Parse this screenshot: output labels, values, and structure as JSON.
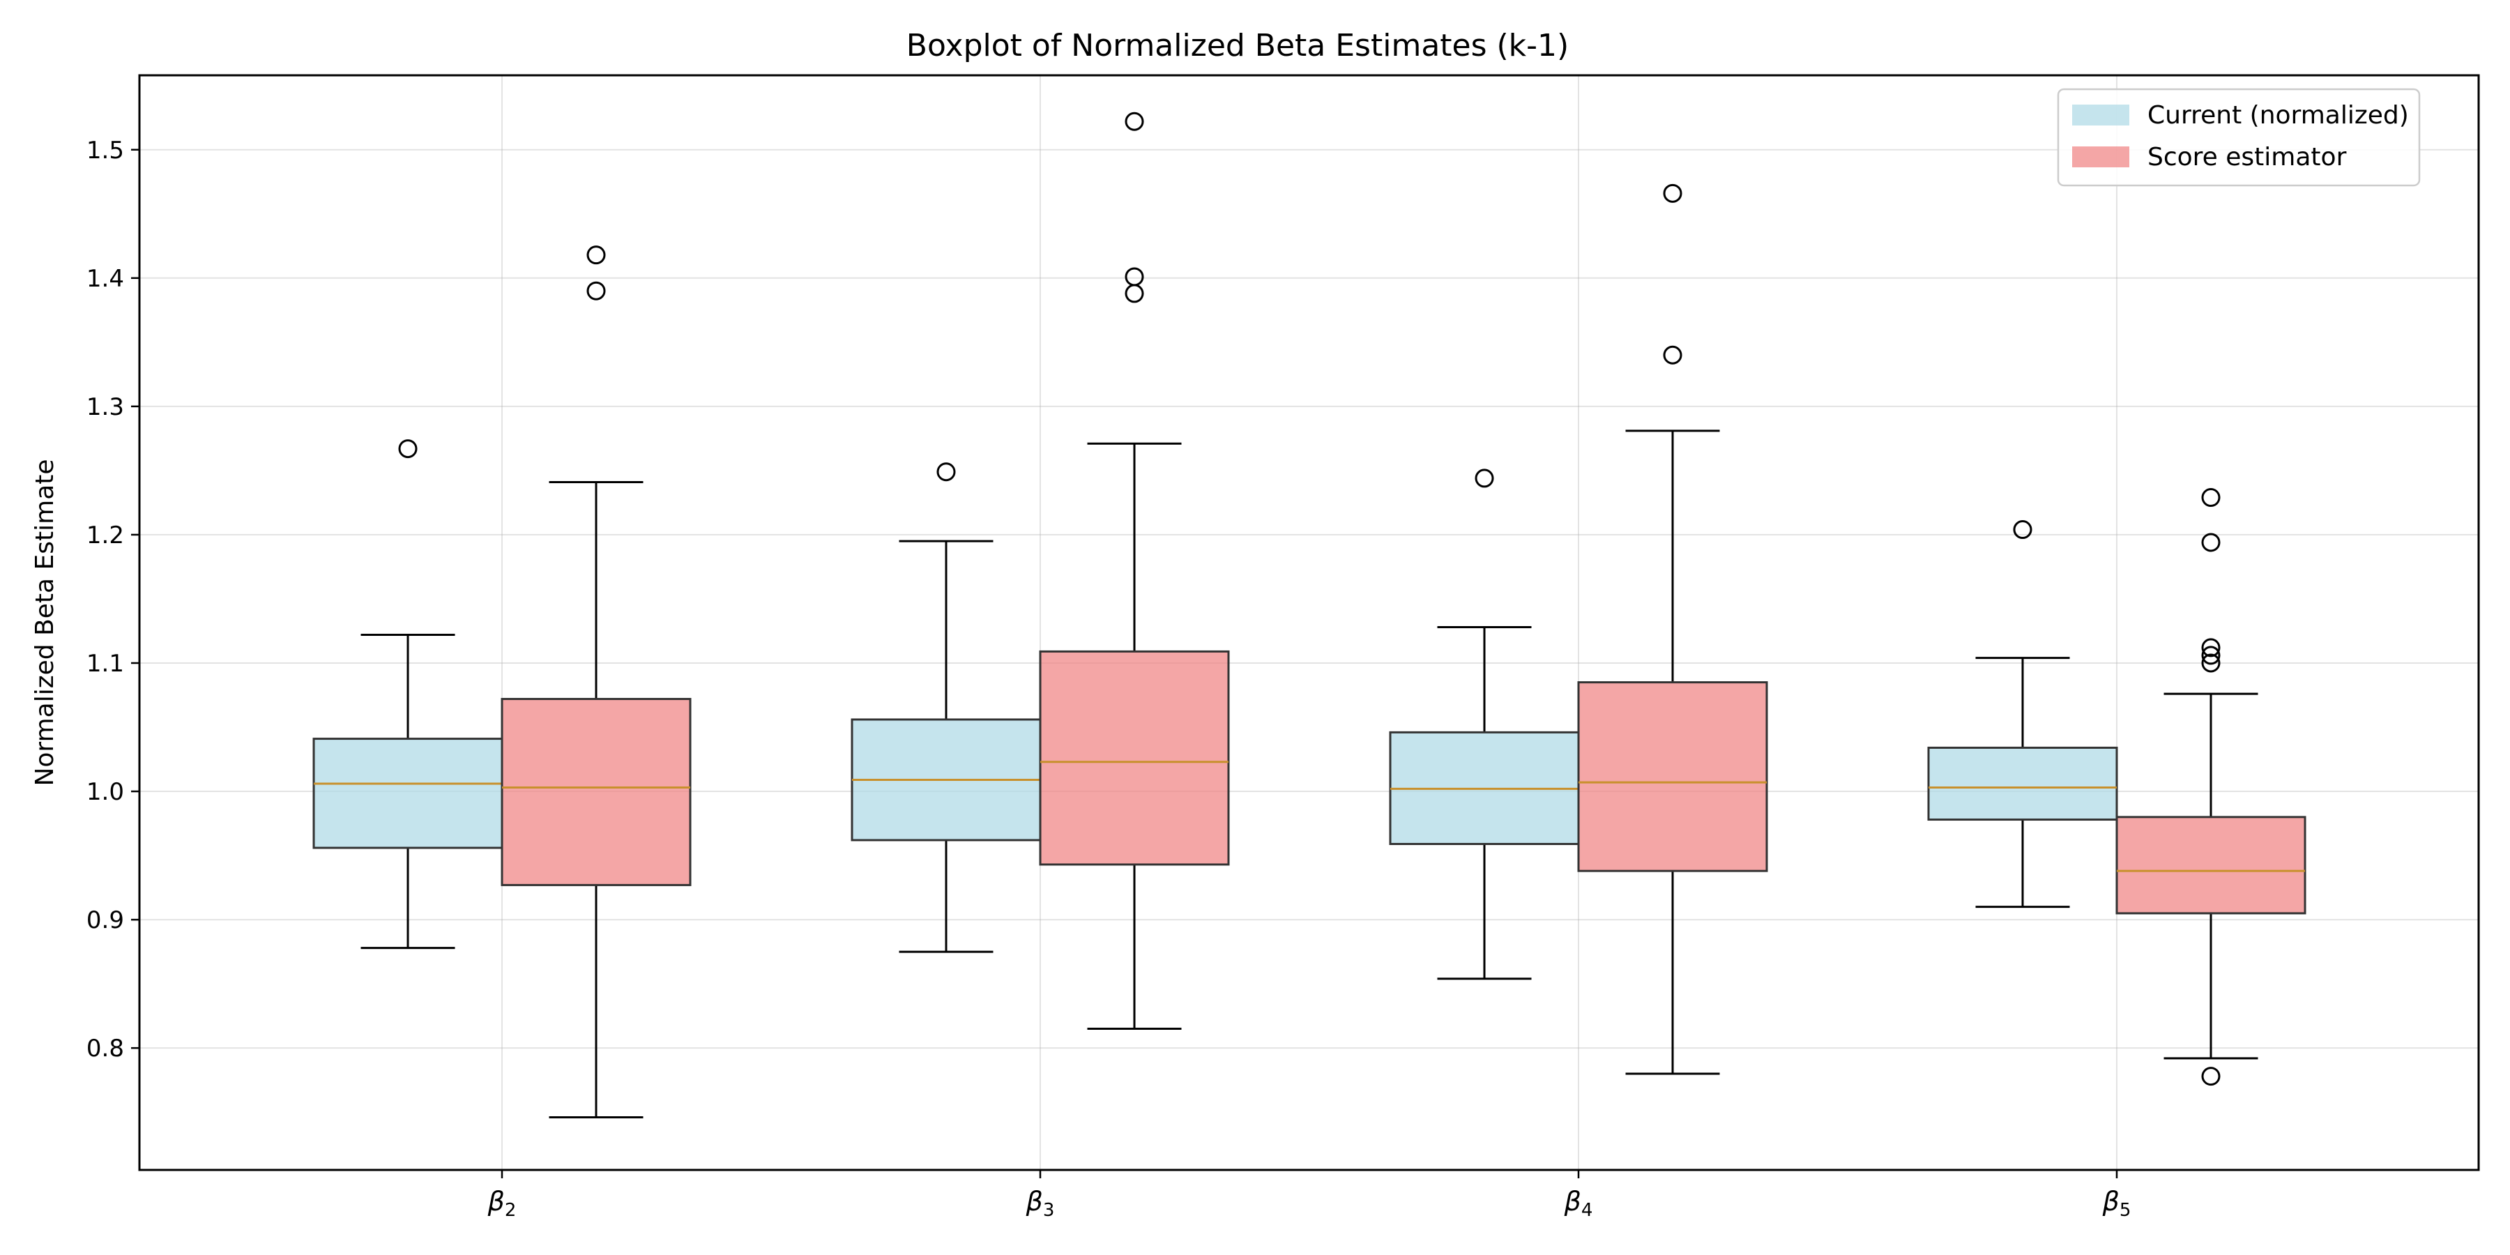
{
  "chart_data": {
    "type": "box",
    "title": "Boxplot of Normalized Beta Estimates (k-1)",
    "xlabel": "",
    "ylabel": "Normalized Beta Estimate",
    "ylim": [
      0.705,
      1.558
    ],
    "yticks": [
      "0.8",
      "0.9",
      "1.0",
      "1.1",
      "1.2",
      "1.3",
      "1.4",
      "1.5"
    ],
    "categories": [
      {
        "symbol": "β",
        "sub": "2"
      },
      {
        "symbol": "β",
        "sub": "3"
      },
      {
        "symbol": "β",
        "sub": "4"
      },
      {
        "symbol": "β",
        "sub": "5"
      }
    ],
    "grid": true,
    "legend": {
      "placement": "top-right"
    },
    "median_color": "#c8902c",
    "series": [
      {
        "name": "Current (normalized)",
        "color": "#add8e6",
        "boxes": [
          {
            "whisker_low": 0.878,
            "q1": 0.956,
            "median": 1.006,
            "q3": 1.041,
            "whisker_high": 1.122,
            "outliers": [
              1.267
            ]
          },
          {
            "whisker_low": 0.875,
            "q1": 0.962,
            "median": 1.009,
            "q3": 1.056,
            "whisker_high": 1.195,
            "outliers": [
              1.249
            ]
          },
          {
            "whisker_low": 0.854,
            "q1": 0.959,
            "median": 1.002,
            "q3": 1.046,
            "whisker_high": 1.128,
            "outliers": [
              1.244
            ]
          },
          {
            "whisker_low": 0.91,
            "q1": 0.978,
            "median": 1.003,
            "q3": 1.034,
            "whisker_high": 1.104,
            "outliers": [
              1.204
            ]
          }
        ]
      },
      {
        "name": "Score estimator",
        "color": "#f08080",
        "boxes": [
          {
            "whisker_low": 0.746,
            "q1": 0.927,
            "median": 1.003,
            "q3": 1.072,
            "whisker_high": 1.241,
            "outliers": [
              1.39,
              1.418
            ]
          },
          {
            "whisker_low": 0.815,
            "q1": 0.943,
            "median": 1.023,
            "q3": 1.109,
            "whisker_high": 1.271,
            "outliers": [
              1.388,
              1.401,
              1.522
            ]
          },
          {
            "whisker_low": 0.78,
            "q1": 0.938,
            "median": 1.007,
            "q3": 1.085,
            "whisker_high": 1.281,
            "outliers": [
              1.34,
              1.466
            ]
          },
          {
            "whisker_low": 0.792,
            "q1": 0.905,
            "median": 0.938,
            "q3": 0.98,
            "whisker_high": 1.076,
            "outliers": [
              0.778,
              1.1,
              1.106,
              1.112,
              1.194,
              1.229
            ]
          }
        ]
      }
    ]
  }
}
